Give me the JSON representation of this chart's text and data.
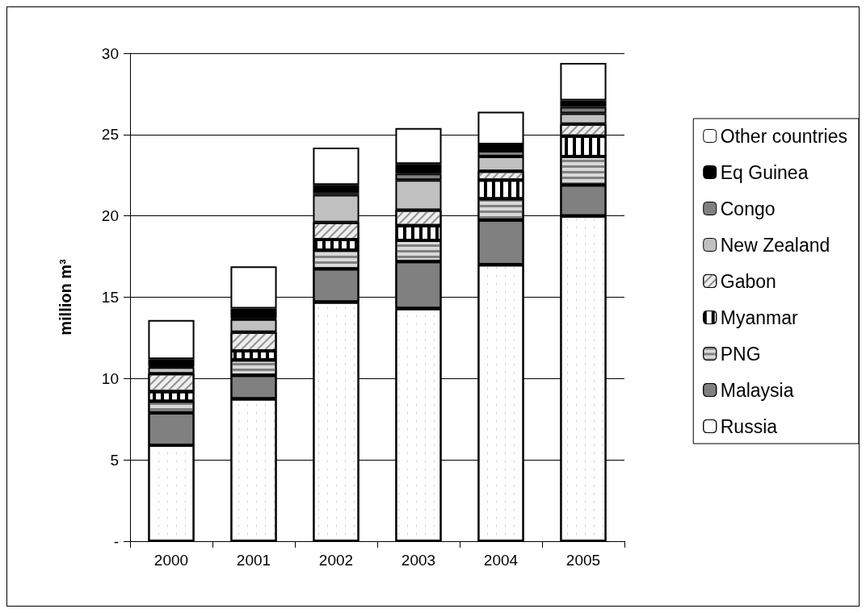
{
  "chart_data": {
    "type": "bar",
    "stacked": true,
    "ylabel": "million m³",
    "categories": [
      "2000",
      "2001",
      "2002",
      "2003",
      "2004",
      "2005"
    ],
    "series": [
      {
        "name": "Russia",
        "color": "#ffffff",
        "values": [
          5.9,
          8.75,
          14.7,
          14.3,
          17.0,
          20.0
        ]
      },
      {
        "name": "Malaysia",
        "color": "#808080",
        "values": [
          2.0,
          1.45,
          2.05,
          2.9,
          2.75,
          1.9
        ]
      },
      {
        "name": "PNG",
        "color": "#d9d9d9",
        "values": [
          0.7,
          0.95,
          1.15,
          1.3,
          1.3,
          1.75
        ]
      },
      {
        "name": "Myanmar",
        "color": "#ffffff",
        "values": [
          0.6,
          0.55,
          0.65,
          0.9,
          1.15,
          1.25
        ]
      },
      {
        "name": "Gabon",
        "color": "#eeeeee",
        "values": [
          1.1,
          1.15,
          1.05,
          0.95,
          0.55,
          0.75
        ]
      },
      {
        "name": "New Zealand",
        "color": "#c0c0c0",
        "values": [
          0.4,
          0.8,
          1.7,
          1.85,
          0.9,
          0.65
        ]
      },
      {
        "name": "Congo",
        "color": "#808080",
        "values": [
          0.05,
          0.05,
          0.1,
          0.4,
          0.35,
          0.4
        ]
      },
      {
        "name": "Eq Guinea",
        "color": "#000000",
        "values": [
          0.45,
          0.6,
          0.5,
          0.6,
          0.4,
          0.4
        ]
      },
      {
        "name": "Other countries",
        "color": "#ffffff",
        "values": [
          2.4,
          2.6,
          2.3,
          2.2,
          2.0,
          2.3
        ]
      }
    ],
    "ylim": [
      0,
      30
    ],
    "yticks": [
      {
        "value": 0,
        "label": "-"
      },
      5,
      10,
      15,
      20,
      25,
      30
    ],
    "grid": "y",
    "legend": "right"
  }
}
